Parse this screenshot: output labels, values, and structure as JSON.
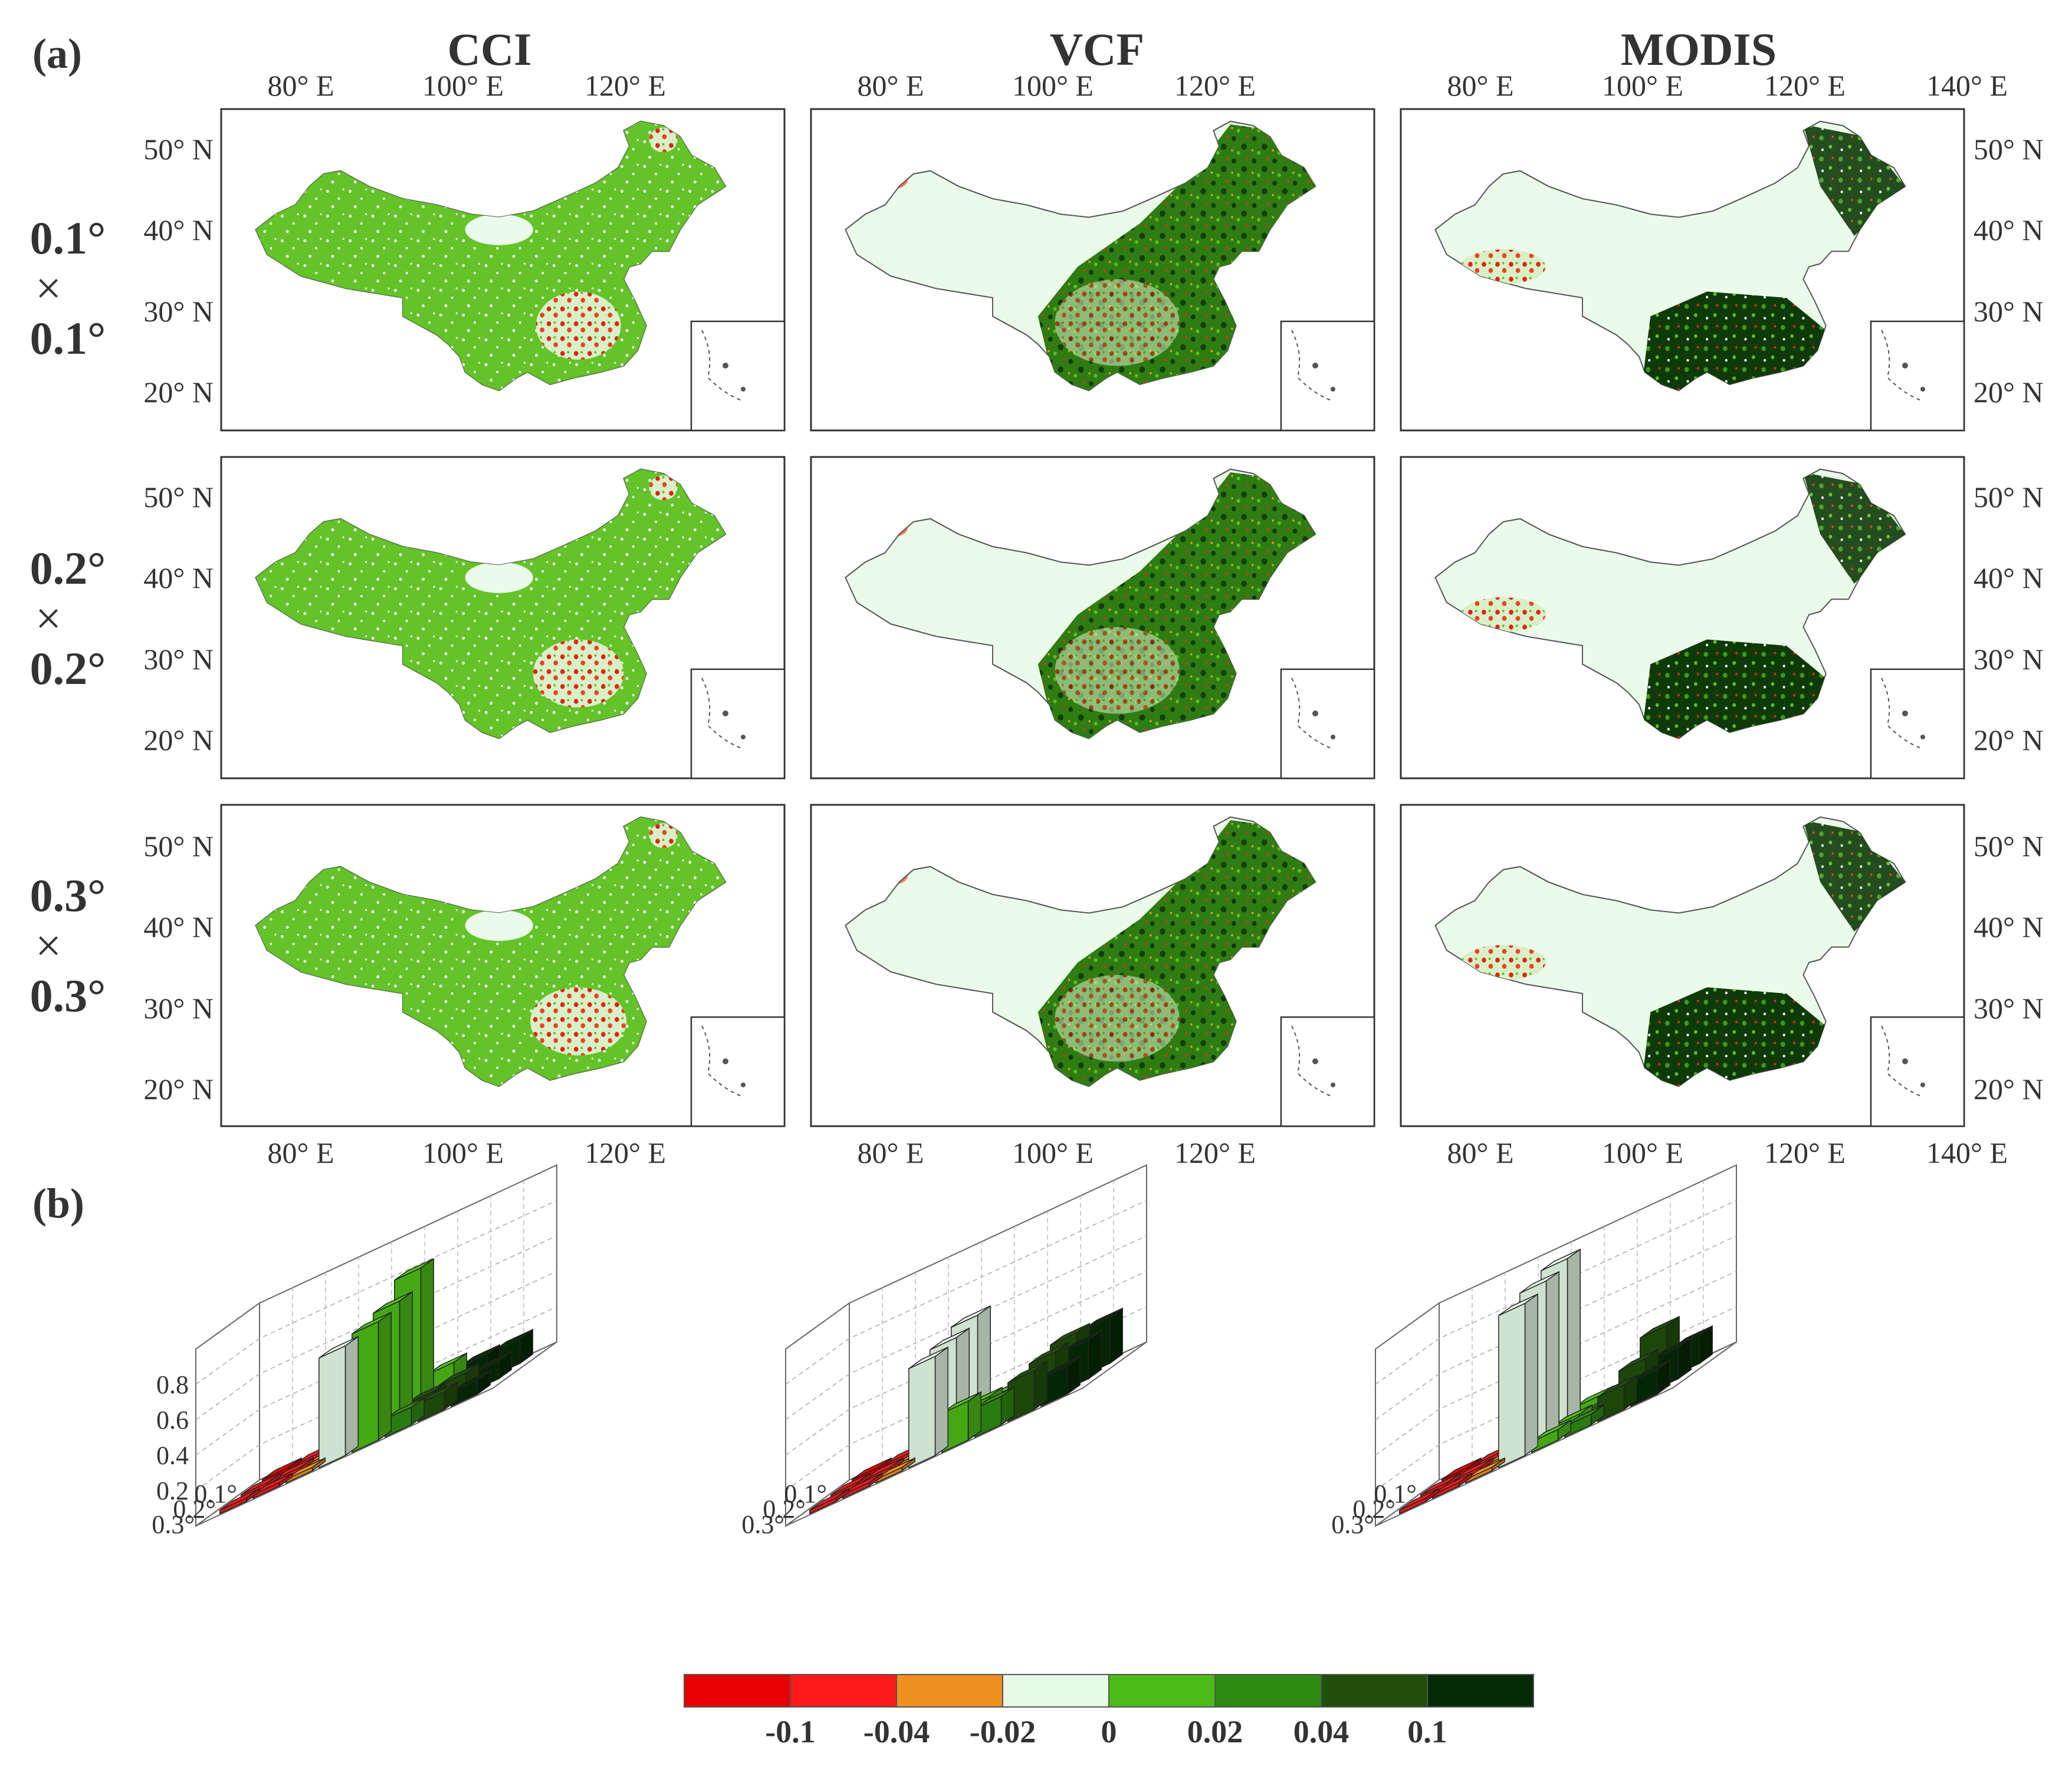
{
  "panel_a": {
    "label": "(a)",
    "columns": [
      "CCI",
      "VCF",
      "MODIS"
    ],
    "rows": [
      {
        "top": "0.1°",
        "times": "×",
        "bottom": "0.1°"
      },
      {
        "top": "0.2°",
        "times": "×",
        "bottom": "0.2°"
      },
      {
        "top": "0.3°",
        "times": "×",
        "bottom": "0.3°"
      }
    ],
    "lon_ticks": [
      "80° E",
      "100° E",
      "120° E",
      "140° E"
    ],
    "lat_ticks": [
      "50° N",
      "40° N",
      "30° N",
      "20° N"
    ]
  },
  "panel_b": {
    "label": "(b)"
  },
  "legend": {
    "colors": [
      "#e60000",
      "#ff1a1a",
      "#ee9020",
      "#e6fbe6",
      "#4cbb17",
      "#2e8b10",
      "#1f4f0a",
      "#062a06"
    ],
    "tick_labels": [
      "-0.1",
      "-0.04",
      "-0.02",
      "0",
      "0.02",
      "0.04",
      "0.1"
    ]
  },
  "chart_data": [
    {
      "type": "bar3d",
      "title": "CCI",
      "x_ticks": [
        "0.1°",
        "0.2°",
        "0.3°"
      ],
      "z_ticks": [
        "0.8",
        "0.6",
        "0.4",
        "0.2"
      ],
      "zlim": [
        0,
        1.0
      ],
      "rows": [
        {
          "resolution": "0.1°",
          "values": [
            0.02,
            0.02,
            0.02,
            0.5,
            0.8,
            0.18,
            0.14,
            0.14
          ],
          "classes": [
            0,
            1,
            2,
            3,
            4,
            4,
            7,
            7
          ]
        },
        {
          "resolution": "0.2°",
          "values": [
            0.02,
            0.02,
            0.02,
            0.58,
            0.7,
            0.1,
            0.12,
            0.1
          ],
          "classes": [
            1,
            1,
            2,
            3,
            4,
            6,
            6,
            7
          ]
        },
        {
          "resolution": "0.3°",
          "values": [
            0.02,
            0.02,
            0.02,
            0.62,
            0.67,
            0.1,
            0.1,
            0.08
          ],
          "classes": [
            1,
            1,
            2,
            3,
            4,
            5,
            6,
            7
          ]
        }
      ]
    },
    {
      "type": "bar3d",
      "title": "VCF",
      "x_ticks": [
        "0.1°",
        "0.2°",
        "0.3°"
      ],
      "z_ticks": [],
      "zlim": [
        0,
        1.0
      ],
      "rows": [
        {
          "resolution": "0.1°",
          "values": [
            0.02,
            0.02,
            0.02,
            0.62,
            0.12,
            0.1,
            0.26,
            0.26
          ],
          "classes": [
            0,
            1,
            2,
            3,
            4,
            5,
            6,
            7
          ]
        },
        {
          "resolution": "0.2°",
          "values": [
            0.02,
            0.02,
            0.02,
            0.58,
            0.16,
            0.12,
            0.24,
            0.22
          ],
          "classes": [
            1,
            1,
            2,
            3,
            4,
            5,
            6,
            7
          ]
        },
        {
          "resolution": "0.3°",
          "values": [
            0.02,
            0.02,
            0.02,
            0.56,
            0.22,
            0.16,
            0.22,
            0.16
          ],
          "classes": [
            1,
            1,
            2,
            3,
            4,
            5,
            6,
            7
          ]
        }
      ]
    },
    {
      "type": "bar3d",
      "title": "MODIS",
      "x_ticks": [
        "0.1°",
        "0.2°",
        "0.3°"
      ],
      "z_ticks": [],
      "zlim": [
        0,
        1.0
      ],
      "rows": [
        {
          "resolution": "0.1°",
          "values": [
            0.02,
            0.02,
            0.02,
            0.94,
            0.08,
            0.06,
            0.3,
            0.16
          ],
          "classes": [
            0,
            1,
            2,
            3,
            4,
            5,
            6,
            7
          ]
        },
        {
          "resolution": "0.2°",
          "values": [
            0.02,
            0.02,
            0.02,
            0.9,
            0.06,
            0.06,
            0.2,
            0.18
          ],
          "classes": [
            1,
            1,
            2,
            3,
            4,
            5,
            6,
            7
          ]
        },
        {
          "resolution": "0.3°",
          "values": [
            0.02,
            0.02,
            0.02,
            0.86,
            0.06,
            0.06,
            0.14,
            0.14
          ],
          "classes": [
            1,
            1,
            2,
            3,
            4,
            5,
            6,
            7
          ]
        }
      ]
    }
  ]
}
